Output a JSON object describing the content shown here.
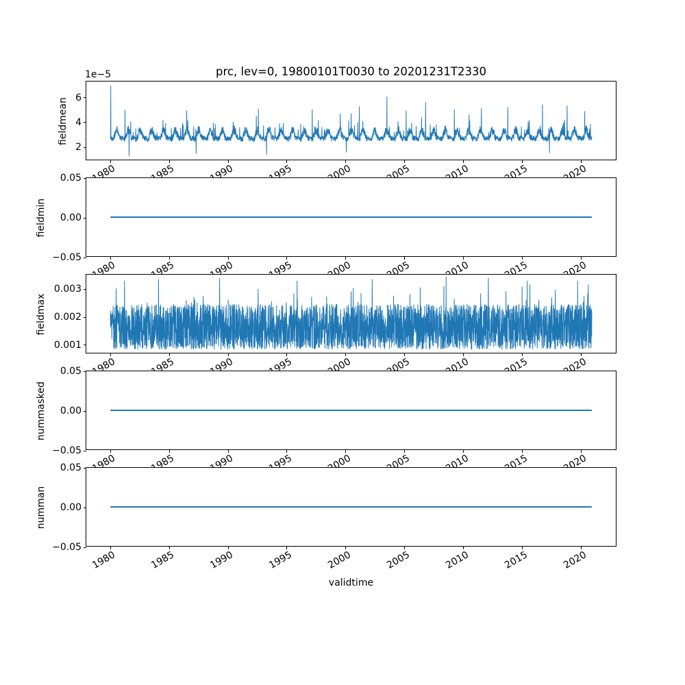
{
  "figure": {
    "title": "prc, lev=0, 19800101T0030 to 20201231T2330",
    "xlabel": "validtime",
    "line_color": "#1f77b4",
    "background_color": "#ffffff",
    "xlim": [
      1977.95,
      2023.05
    ],
    "xticks": {
      "labels": [
        "1980",
        "1985",
        "1990",
        "1995",
        "2000",
        "2005",
        "2010",
        "2015",
        "2020"
      ],
      "values": [
        1980,
        1985,
        1990,
        1995,
        2000,
        2005,
        2010,
        2015,
        2020
      ],
      "rotation_deg": 30
    }
  },
  "chart_data": [
    {
      "type": "line",
      "ylabel": "fieldmean",
      "offset_text": "1e−5",
      "ylim": [
        9e-06,
        7.3e-05
      ],
      "yticks": {
        "labels": [
          "2",
          "4",
          "6"
        ],
        "values": [
          2e-05,
          4e-05,
          6e-05
        ]
      },
      "x_range": [
        1980.0,
        2021.0
      ],
      "series": {
        "kind": "seasonal-noise",
        "points": 2600,
        "base": 2.85e-05,
        "seasonal_amplitude": 6e-06,
        "noise_amplitude": 3.6e-06,
        "spike_probability": 0.03,
        "dip_probability": 0.002,
        "min": 1.15e-05,
        "max": 7e-05,
        "stroke_width": 1,
        "spikes": [
          [
            1980.03,
            6.95e-05
          ],
          [
            1981.25,
            4.95e-05
          ],
          [
            1986.5,
            4.9e-05
          ],
          [
            1992.6,
            5.05e-05
          ],
          [
            1997.2,
            5e-05
          ],
          [
            2001.2,
            5.25e-05
          ],
          [
            2003.55,
            6.05e-05
          ],
          [
            2005.2,
            4.9e-05
          ],
          [
            2006.85,
            5.6e-05
          ],
          [
            2009.3,
            5e-05
          ],
          [
            2011.6,
            5.1e-05
          ],
          [
            2013.85,
            5.2e-05
          ],
          [
            2016.8,
            5.4e-05
          ],
          [
            2018.9,
            5.3e-05
          ],
          [
            2020.4,
            4.85e-05
          ]
        ],
        "dips": [
          [
            1981.6,
            1.2e-05
          ],
          [
            1987.3,
            1.4e-05
          ],
          [
            1993.3,
            1.3e-05
          ],
          [
            2000.1,
            1.5e-05
          ],
          [
            2017.4,
            1.45e-05
          ]
        ]
      }
    },
    {
      "type": "line",
      "ylabel": "fieldmin",
      "ylim": [
        -0.05,
        0.05
      ],
      "yticks": {
        "labels": [
          "0.05",
          "0.00",
          "−0.05"
        ],
        "values": [
          0.05,
          0.0,
          -0.05
        ]
      },
      "x_range": [
        1980.0,
        2021.0
      ],
      "series": {
        "kind": "flat",
        "value": 0.0,
        "stroke_width": 2
      }
    },
    {
      "type": "line",
      "ylabel": "fieldmax",
      "ylim": [
        0.00067,
        0.00353
      ],
      "yticks": {
        "labels": [
          "0.001",
          "0.002",
          "0.003"
        ],
        "values": [
          0.001,
          0.002,
          0.003
        ]
      },
      "x_range": [
        1980.0,
        2021.0
      ],
      "series": {
        "kind": "band-noise",
        "points": 3200,
        "band_low": 0.00095,
        "band_high": 0.00245,
        "min": 0.0008,
        "max": 0.00345,
        "spike_probability": 0.05,
        "low_probability": 0.12,
        "stroke_width": 1,
        "spikes": [
          [
            1981.2,
            0.0033
          ],
          [
            1984.1,
            0.00335
          ],
          [
            1989.3,
            0.0034
          ],
          [
            1995.9,
            0.0033
          ],
          [
            2002.3,
            0.00335
          ],
          [
            2008.6,
            0.00345
          ],
          [
            2012.2,
            0.0034
          ],
          [
            2015.5,
            0.0033
          ],
          [
            2019.8,
            0.0033
          ]
        ]
      }
    },
    {
      "type": "line",
      "ylabel": "nummasked",
      "ylim": [
        -0.05,
        0.05
      ],
      "yticks": {
        "labels": [
          "0.05",
          "0.00",
          "−0.05"
        ],
        "values": [
          0.05,
          0.0,
          -0.05
        ]
      },
      "x_range": [
        1980.0,
        2021.0
      ],
      "series": {
        "kind": "flat",
        "value": 0.0,
        "stroke_width": 2
      }
    },
    {
      "type": "line",
      "ylabel": "numman",
      "ylim": [
        -0.05,
        0.05
      ],
      "yticks": {
        "labels": [
          "0.05",
          "0.00",
          "−0.05"
        ],
        "values": [
          0.05,
          0.0,
          -0.05
        ]
      },
      "x_range": [
        1980.0,
        2021.0
      ],
      "series": {
        "kind": "flat",
        "value": 0.0,
        "stroke_width": 2
      }
    }
  ]
}
